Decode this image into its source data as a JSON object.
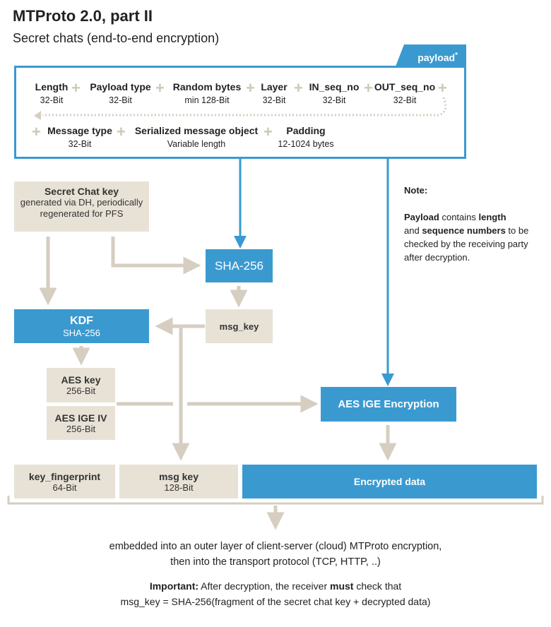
{
  "title": "MTProto 2.0, part II",
  "subtitle": "Secret chats (end-to-end encryption)",
  "payload": {
    "tab": "payload",
    "asterisk": "*",
    "row1": [
      {
        "name": "Length",
        "size": "32-Bit"
      },
      {
        "name": "Payload type",
        "size": "32-Bit"
      },
      {
        "name": "Random bytes",
        "size": "min 128-Bit"
      },
      {
        "name": "Layer",
        "size": "32-Bit"
      },
      {
        "name": "IN_seq_no",
        "size": "32-Bit"
      },
      {
        "name": "OUT_seq_no",
        "size": "32-Bit"
      }
    ],
    "row2": [
      {
        "name": "Message type",
        "size": "32-Bit"
      },
      {
        "name": "Serialized message object",
        "size": "Variable length"
      },
      {
        "name": "Padding",
        "size": "12-1024 bytes"
      }
    ]
  },
  "secret_key": {
    "title": "Secret Chat key",
    "line1": "generated via DH, periodically",
    "line2": "regenerated for PFS"
  },
  "sha": "SHA-256",
  "msg_key": "msg_key",
  "kdf": {
    "title": "KDF",
    "sub": "SHA-256"
  },
  "aes_key": {
    "title": "AES key",
    "sub": "256-Bit"
  },
  "aes_iv": {
    "title": "AES IGE IV",
    "sub": "256-Bit"
  },
  "aes_enc": "AES IGE Encryption",
  "bottom": {
    "fp": {
      "title": "key_fingerprint",
      "sub": "64-Bit"
    },
    "mk": {
      "title": "msg key",
      "sub": "128-Bit"
    },
    "enc": "Encrypted data"
  },
  "note": {
    "label": "Note:",
    "p1": "Payload",
    "p2": " contains ",
    "p3": "length",
    "p4": "and ",
    "p5": "sequence numbers",
    "p6": " to be",
    "p7": "checked by the receiving party",
    "p8": "after decryption."
  },
  "footer": {
    "l1": "embedded into an outer layer of client-server (cloud) MTProto encryption,",
    "l2": "then into the transport protocol (TCP, HTTP, ..)",
    "imp": "Important:",
    "l3a": " After decryption, the receiver ",
    "must": "must",
    "l3b": " check that",
    "l4": "msg_key = SHA-256(fragment of the secret chat key + decrypted data)"
  },
  "colors": {
    "blue": "#3a9ad0",
    "beige": "#e8e2d6",
    "arrow": "#d5cec1"
  }
}
